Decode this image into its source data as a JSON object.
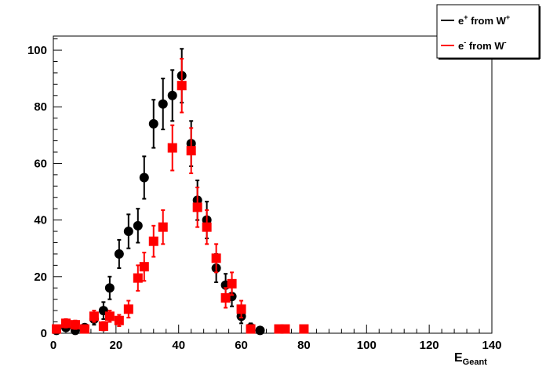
{
  "chart_data": {
    "type": "scatter",
    "title": "",
    "xlabel": "E",
    "xlabel_sub": "Geant",
    "ylabel": "",
    "xlim": [
      0,
      140
    ],
    "ylim": [
      0,
      105
    ],
    "x_ticks": [
      0,
      20,
      40,
      60,
      80,
      100,
      120,
      140
    ],
    "y_ticks": [
      0,
      20,
      40,
      60,
      80,
      100
    ],
    "grid": false,
    "legend_position": "top-right",
    "series": [
      {
        "name": "e⁺ from W⁺",
        "legend_main": "e",
        "legend_sup": "+",
        "legend_mid": " from W",
        "legend_sup2": "+",
        "color": "#000000",
        "marker": "circle",
        "points": [
          {
            "x": 1,
            "y": 1,
            "err": 0
          },
          {
            "x": 4,
            "y": 2,
            "err": 0
          },
          {
            "x": 7,
            "y": 1,
            "err": 0
          },
          {
            "x": 10,
            "y": 2,
            "err": 1
          },
          {
            "x": 13,
            "y": 5,
            "err": 2
          },
          {
            "x": 16,
            "y": 8,
            "err": 3
          },
          {
            "x": 18,
            "y": 16,
            "err": 4
          },
          {
            "x": 21,
            "y": 28,
            "err": 5
          },
          {
            "x": 24,
            "y": 36,
            "err": 6
          },
          {
            "x": 27,
            "y": 38,
            "err": 6
          },
          {
            "x": 29,
            "y": 55,
            "err": 7.5
          },
          {
            "x": 32,
            "y": 74,
            "err": 8.5
          },
          {
            "x": 35,
            "y": 81,
            "err": 9
          },
          {
            "x": 38,
            "y": 84,
            "err": 9
          },
          {
            "x": 41,
            "y": 91,
            "err": 9.5
          },
          {
            "x": 44,
            "y": 67,
            "err": 8
          },
          {
            "x": 46,
            "y": 47,
            "err": 7
          },
          {
            "x": 49,
            "y": 40,
            "err": 6.5
          },
          {
            "x": 52,
            "y": 23,
            "err": 5
          },
          {
            "x": 55,
            "y": 17,
            "err": 4
          },
          {
            "x": 57,
            "y": 13,
            "err": 3.5
          },
          {
            "x": 60,
            "y": 6,
            "err": 2.5
          },
          {
            "x": 63,
            "y": 2,
            "err": 1.5
          },
          {
            "x": 66,
            "y": 1,
            "err": 1
          }
        ]
      },
      {
        "name": "e⁻ from W⁻",
        "legend_main": "e",
        "legend_sup": "-",
        "legend_mid": " from W",
        "legend_sup2": "-",
        "color": "#ff0000",
        "marker": "square",
        "points": [
          {
            "x": 1,
            "y": 1.5,
            "err": 1
          },
          {
            "x": 4,
            "y": 3.5,
            "err": 1.5
          },
          {
            "x": 7,
            "y": 3,
            "err": 1.5
          },
          {
            "x": 10,
            "y": 1.5,
            "err": 1
          },
          {
            "x": 13,
            "y": 6,
            "err": 2
          },
          {
            "x": 16,
            "y": 2.5,
            "err": 1.5
          },
          {
            "x": 18,
            "y": 6,
            "err": 2
          },
          {
            "x": 21,
            "y": 4.5,
            "err": 2
          },
          {
            "x": 24,
            "y": 8.5,
            "err": 3
          },
          {
            "x": 27,
            "y": 19.5,
            "err": 4.5
          },
          {
            "x": 29,
            "y": 23.5,
            "err": 5
          },
          {
            "x": 32,
            "y": 32.5,
            "err": 5.5
          },
          {
            "x": 35,
            "y": 37.5,
            "err": 6
          },
          {
            "x": 38,
            "y": 65.5,
            "err": 8
          },
          {
            "x": 41,
            "y": 87.5,
            "err": 9.5
          },
          {
            "x": 44,
            "y": 64.5,
            "err": 8
          },
          {
            "x": 46,
            "y": 44.5,
            "err": 7
          },
          {
            "x": 49,
            "y": 37.5,
            "err": 6
          },
          {
            "x": 52,
            "y": 26.5,
            "err": 5
          },
          {
            "x": 55,
            "y": 12.5,
            "err": 3.5
          },
          {
            "x": 57,
            "y": 17.5,
            "err": 4
          },
          {
            "x": 60,
            "y": 8.5,
            "err": 3
          },
          {
            "x": 63,
            "y": 1.5,
            "err": 1
          },
          {
            "x": 72,
            "y": 1.5,
            "err": 1
          },
          {
            "x": 74,
            "y": 1.5,
            "err": 1
          },
          {
            "x": 80,
            "y": 1.5,
            "err": 1
          }
        ]
      }
    ]
  }
}
